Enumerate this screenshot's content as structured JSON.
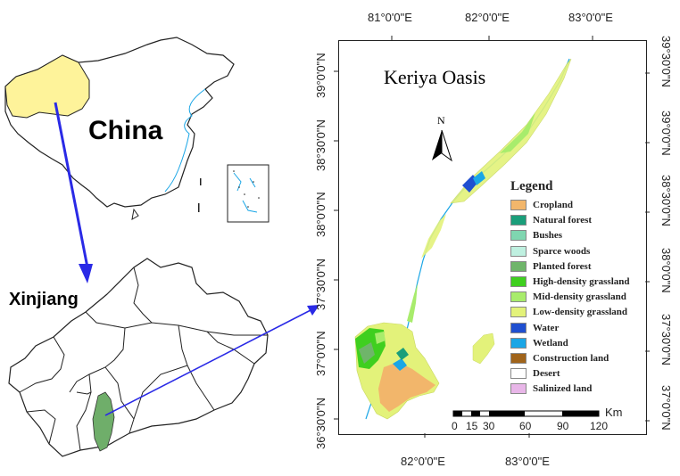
{
  "china_label": "China",
  "xinjiang_label": "Xinjiang",
  "map_title": "Keriya Oasis",
  "north_label": "N",
  "top_lon_labels": [
    "81°0'0\"E",
    "82°0'0\"E",
    "83°0'0\"E"
  ],
  "bottom_lon_labels": [
    "82°0'0\"E",
    "83°0'0\"E"
  ],
  "left_lat_labels": [
    "39°0'0\"N",
    "38°30'0\"N",
    "38°0'0\"N",
    "37°30'0\"N",
    "37°0'0\"N",
    "36°30'0\"N"
  ],
  "right_lat_labels": [
    "39°30'0\"N",
    "39°0'0\"N",
    "38°30'0\"N",
    "38°0'0\"N",
    "37°30'0\"N",
    "37°0'0\"N"
  ],
  "legend": {
    "title": "Legend",
    "items": [
      {
        "label": "Cropland",
        "color": "#f2b66b"
      },
      {
        "label": "Natural forest",
        "color": "#1a9e7a"
      },
      {
        "label": "Bushes",
        "color": "#7fd6b0"
      },
      {
        "label": "Sparce woods",
        "color": "#bff0e0"
      },
      {
        "label": "Planted forest",
        "color": "#6fb56a"
      },
      {
        "label": "High-density grassland",
        "color": "#3fcf1f"
      },
      {
        "label": "Mid-density grassland",
        "color": "#a8ec6c"
      },
      {
        "label": "Low-density grassland",
        "color": "#e3f27a"
      },
      {
        "label": "Water",
        "color": "#1f4fd0"
      },
      {
        "label": "Wetland",
        "color": "#1aa6e6"
      },
      {
        "label": "Construction land",
        "color": "#a0641a"
      },
      {
        "label": "Desert",
        "color": "#ffffff"
      },
      {
        "label": "Salinized land",
        "color": "#e8b6e8"
      }
    ]
  },
  "scale_bar": {
    "unit": "Km",
    "labels": [
      "0",
      "15",
      "30",
      "60",
      "90",
      "120"
    ]
  },
  "colors": {
    "china_highlight": "#fef39a",
    "xinjiang_highlight": "#6fae6a",
    "arrow": "#2a2ae6"
  }
}
